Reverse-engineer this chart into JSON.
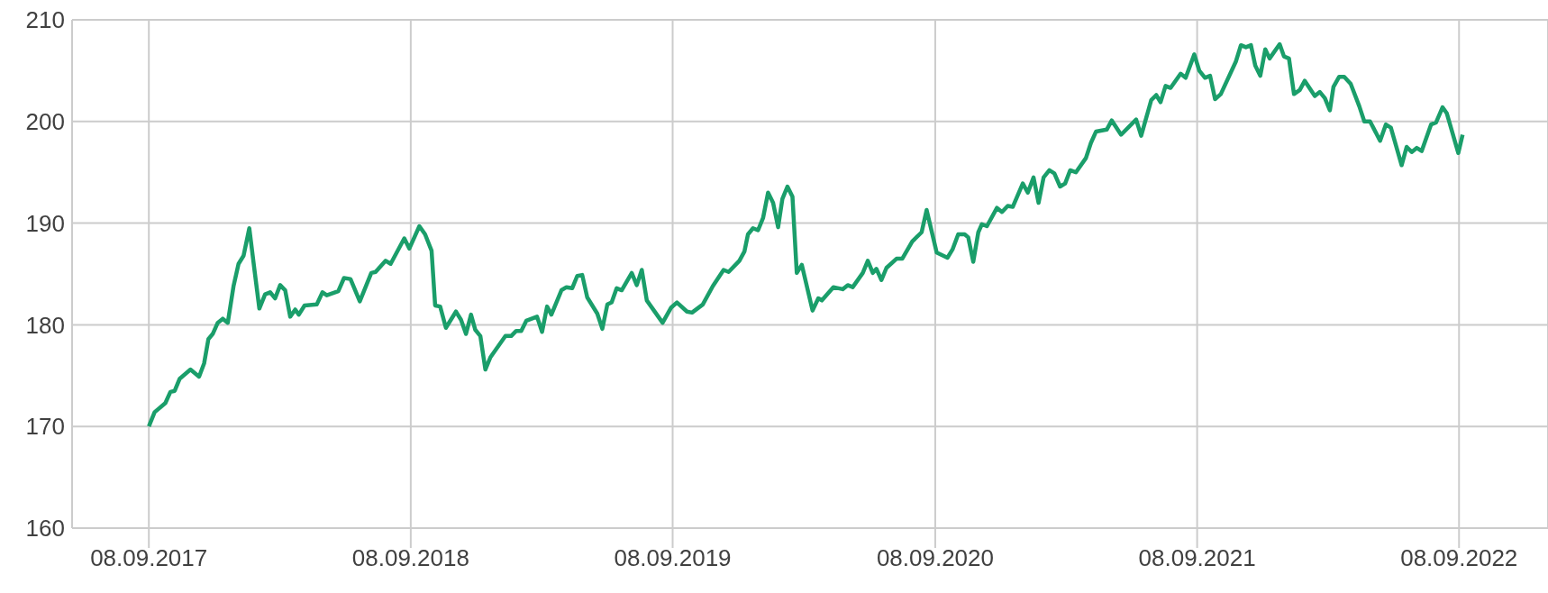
{
  "chart_data": {
    "type": "line",
    "xlim": [
      "2017-05-24",
      "2023-01-10"
    ],
    "xticks": [
      {
        "value": "2017-09-08",
        "label": "08.09.2017"
      },
      {
        "value": "2018-09-08",
        "label": "08.09.2018"
      },
      {
        "value": "2019-09-08",
        "label": "08.09.2019"
      },
      {
        "value": "2020-09-08",
        "label": "08.09.2020"
      },
      {
        "value": "2021-09-08",
        "label": "08.09.2021"
      },
      {
        "value": "2022-09-08",
        "label": "08.09.2022"
      }
    ],
    "ylim": [
      160,
      210
    ],
    "yticks": [
      160,
      170,
      180,
      190,
      200,
      210
    ],
    "grid": true,
    "x": [
      "2017-09-08",
      "2017-09-16",
      "2017-10-01",
      "2017-10-08",
      "2017-10-14",
      "2017-10-21",
      "2017-11-05",
      "2017-11-17",
      "2017-11-24",
      "2017-11-30",
      "2017-12-06",
      "2017-12-13",
      "2017-12-20",
      "2017-12-27",
      "2018-01-04",
      "2018-01-11",
      "2018-01-18",
      "2018-01-26",
      "2018-02-02",
      "2018-02-09",
      "2018-02-17",
      "2018-02-24",
      "2018-03-03",
      "2018-03-10",
      "2018-03-17",
      "2018-03-24",
      "2018-03-31",
      "2018-04-05",
      "2018-04-13",
      "2018-04-30",
      "2018-05-08",
      "2018-05-14",
      "2018-05-30",
      "2018-06-07",
      "2018-06-16",
      "2018-06-29",
      "2018-07-15",
      "2018-07-21",
      "2018-08-04",
      "2018-08-11",
      "2018-08-30",
      "2018-09-06",
      "2018-09-20",
      "2018-09-28",
      "2018-10-07",
      "2018-10-12",
      "2018-10-19",
      "2018-10-27",
      "2018-11-10",
      "2018-11-17",
      "2018-11-24",
      "2018-12-01",
      "2018-12-07",
      "2018-12-14",
      "2018-12-21",
      "2018-12-28",
      "2019-01-18",
      "2019-01-26",
      "2019-02-02",
      "2019-02-09",
      "2019-02-16",
      "2019-03-03",
      "2019-03-10",
      "2019-03-17",
      "2019-03-23",
      "2019-04-06",
      "2019-04-13",
      "2019-04-21",
      "2019-04-28",
      "2019-05-05",
      "2019-05-12",
      "2019-05-26",
      "2019-06-02",
      "2019-06-09",
      "2019-06-15",
      "2019-06-22",
      "2019-06-29",
      "2019-07-13",
      "2019-07-20",
      "2019-07-27",
      "2019-08-03",
      "2019-08-25",
      "2019-09-06",
      "2019-09-14",
      "2019-09-28",
      "2019-10-05",
      "2019-10-20",
      "2019-11-03",
      "2019-11-18",
      "2019-11-25",
      "2019-12-10",
      "2019-12-17",
      "2019-12-22",
      "2019-12-29",
      "2020-01-05",
      "2020-01-12",
      "2020-01-19",
      "2020-01-26",
      "2020-02-02",
      "2020-02-08",
      "2020-02-15",
      "2020-02-22",
      "2020-02-28",
      "2020-03-06",
      "2020-03-21",
      "2020-03-29",
      "2020-04-03",
      "2020-04-19",
      "2020-05-02",
      "2020-05-09",
      "2020-05-16",
      "2020-05-30",
      "2020-06-06",
      "2020-06-13",
      "2020-06-18",
      "2020-06-25",
      "2020-07-02",
      "2020-07-16",
      "2020-07-24",
      "2020-08-07",
      "2020-08-20",
      "2020-08-27",
      "2020-09-10",
      "2020-09-25",
      "2020-10-02",
      "2020-10-10",
      "2020-10-19",
      "2020-10-24",
      "2020-10-31",
      "2020-11-07",
      "2020-11-12",
      "2020-11-19",
      "2020-12-03",
      "2020-12-10",
      "2020-12-18",
      "2020-12-25",
      "2021-01-08",
      "2021-01-15",
      "2021-01-23",
      "2021-01-30",
      "2021-02-06",
      "2021-02-14",
      "2021-02-21",
      "2021-03-01",
      "2021-03-08",
      "2021-03-15",
      "2021-03-23",
      "2021-04-06",
      "2021-04-13",
      "2021-04-20",
      "2021-05-05",
      "2021-05-12",
      "2021-05-25",
      "2021-06-15",
      "2021-06-22",
      "2021-07-06",
      "2021-07-13",
      "2021-07-19",
      "2021-07-26",
      "2021-08-02",
      "2021-08-16",
      "2021-08-23",
      "2021-09-04",
      "2021-09-11",
      "2021-09-19",
      "2021-09-26",
      "2021-10-03",
      "2021-10-11",
      "2021-11-01",
      "2021-11-08",
      "2021-11-15",
      "2021-11-22",
      "2021-11-28",
      "2021-12-05",
      "2021-12-12",
      "2021-12-18",
      "2022-01-01",
      "2022-01-07",
      "2022-01-14",
      "2022-01-21",
      "2022-01-29",
      "2022-02-05",
      "2022-02-19",
      "2022-02-26",
      "2022-03-05",
      "2022-03-12",
      "2022-03-17",
      "2022-03-25",
      "2022-04-01",
      "2022-04-10",
      "2022-04-22",
      "2022-04-29",
      "2022-05-07",
      "2022-05-21",
      "2022-05-29",
      "2022-06-05",
      "2022-06-20",
      "2022-06-27",
      "2022-07-04",
      "2022-07-11",
      "2022-07-18",
      "2022-07-31",
      "2022-08-07",
      "2022-08-16",
      "2022-08-22",
      "2022-09-07",
      "2022-09-13"
    ],
    "series": [
      {
        "color": "#1a9e6a",
        "values": [
          170,
          171.4,
          172.3,
          173.4,
          173.5,
          174.7,
          175.6,
          174.9,
          176.2,
          178.6,
          179.1,
          180.2,
          180.6,
          180.2,
          183.8,
          186,
          186.8,
          189.5,
          185.5,
          181.6,
          183,
          183.2,
          182.6,
          183.9,
          183.4,
          180.8,
          181.5,
          181,
          181.9,
          182,
          183.2,
          182.9,
          183.3,
          184.6,
          184.5,
          182.3,
          185.1,
          185.2,
          186.3,
          186,
          188.5,
          187.5,
          189.7,
          188.9,
          187.3,
          181.9,
          181.8,
          179.7,
          181.3,
          180.5,
          179.1,
          181,
          179.5,
          178.9,
          175.6,
          176.8,
          178.9,
          178.9,
          179.4,
          179.4,
          180.4,
          180.8,
          179.3,
          181.8,
          181,
          183.4,
          183.7,
          183.6,
          184.8,
          184.9,
          182.7,
          181.1,
          179.6,
          182,
          182.2,
          183.6,
          183.4,
          185.1,
          183.9,
          185.4,
          182.4,
          180.2,
          181.7,
          182.2,
          181.3,
          181.2,
          182,
          183.8,
          185.4,
          185.2,
          186.3,
          187.2,
          188.9,
          189.5,
          189.3,
          190.5,
          193,
          192,
          189.6,
          192.4,
          193.6,
          192.6,
          185.1,
          185.9,
          181.4,
          182.6,
          182.4,
          183.7,
          183.5,
          183.9,
          183.7,
          185.1,
          186.3,
          185.1,
          185.5,
          184.4,
          185.6,
          186.5,
          186.5,
          188.2,
          189.1,
          191.3,
          187.1,
          186.6,
          187.4,
          188.9,
          188.9,
          188.6,
          186.2,
          189.1,
          189.9,
          189.7,
          191.5,
          191.1,
          191.7,
          191.6,
          193.9,
          193,
          194.5,
          192,
          194.5,
          195.2,
          194.9,
          193.6,
          193.9,
          195.2,
          195,
          196.4,
          197.9,
          199,
          199.2,
          200.1,
          198.7,
          200.2,
          198.6,
          202.1,
          202.6,
          201.9,
          203.5,
          203.3,
          204.7,
          204.3,
          206.6,
          205,
          204.3,
          204.5,
          202.2,
          202.7,
          205.9,
          207.5,
          207.3,
          207.5,
          205.5,
          204.5,
          207.1,
          206.2,
          207.6,
          206.4,
          206.2,
          202.7,
          203.1,
          204,
          202.5,
          202.9,
          202.3,
          201.1,
          203.4,
          204.4,
          204.4,
          203.7,
          201.5,
          200,
          200,
          198.1,
          199.7,
          199.4,
          195.7,
          197.5,
          197,
          197.4,
          197.1,
          199.7,
          199.9,
          201.4,
          200.8,
          196.9,
          198.7
        ]
      }
    ]
  }
}
